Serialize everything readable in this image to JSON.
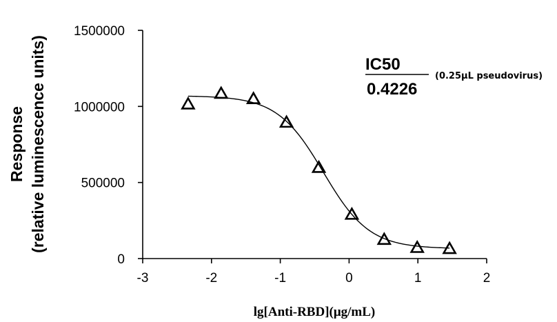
{
  "chart_data": {
    "type": "scatter",
    "xlabel": "lg[Anti-RBD](μg/mL)",
    "ylabel_line1": "Response",
    "ylabel_line2": "(relative luminescence units)",
    "xlim": [
      -3,
      2
    ],
    "ylim": [
      0,
      1500000
    ],
    "xticks": [
      -3,
      -2,
      -1,
      0,
      1,
      2
    ],
    "xtick_labels": [
      "-3",
      "-2",
      "-1",
      "0",
      "1",
      "2"
    ],
    "yticks": [
      0,
      500000,
      1000000,
      1500000
    ],
    "ytick_labels": [
      "0",
      "500000",
      "1000000",
      "1500000"
    ],
    "grid": false,
    "marker": "open-triangle",
    "points": [
      {
        "x": -2.34,
        "y": 1015000
      },
      {
        "x": -1.86,
        "y": 1085000
      },
      {
        "x": -1.39,
        "y": 1050000
      },
      {
        "x": -0.91,
        "y": 895000
      },
      {
        "x": -0.44,
        "y": 598000
      },
      {
        "x": 0.04,
        "y": 290000
      },
      {
        "x": 0.51,
        "y": 125000
      },
      {
        "x": 0.99,
        "y": 72000
      },
      {
        "x": 1.46,
        "y": 65000
      }
    ],
    "fit_curve": {
      "model": "four-parameter logistic",
      "top": 1070000,
      "bottom": 65000,
      "log_ic50": -0.374,
      "hill_slope": 1.3,
      "x_range": [
        -2.34,
        1.46
      ]
    },
    "annotation": {
      "title": "IC50",
      "value": "0.4226",
      "note": "(0.25μL pseudovirus)"
    }
  }
}
